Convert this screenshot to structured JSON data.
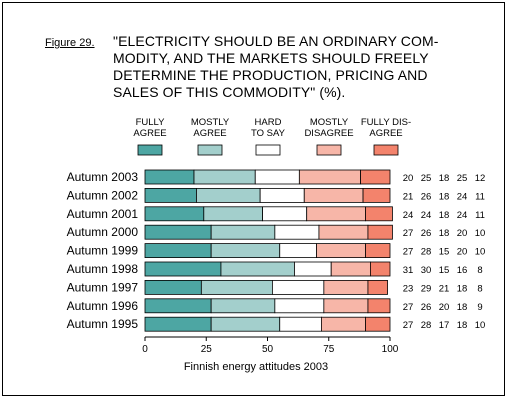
{
  "figure": {
    "label": "Figure 29.",
    "title": "\"ELECTRICITY SHOULD BE AN ORDINARY COM-\nMODITY, AND THE MARKETS SHOULD FREELY\nDETERMINE THE PRODUCTION, PRICING AND\nSALES OF THIS COMMODITY\" (%)."
  },
  "colors": {
    "fully_agree": "#4da6a3",
    "mostly_agree": "#a3cfcc",
    "hard_to_say": "#ffffff",
    "mostly_disagree": "#f7b6a8",
    "fully_disagree": "#f3836c"
  },
  "chart_data": {
    "type": "bar",
    "orientation": "horizontal",
    "stacked": true,
    "title": "\"ELECTRICITY SHOULD BE AN ORDINARY COMMODITY, AND THE MARKETS SHOULD FREELY DETERMINE THE PRODUCTION, PRICING AND SALES OF THIS COMMODITY\" (%).",
    "xlabel": "Finnish energy attitudes 2003",
    "xlim": [
      0,
      100
    ],
    "xticks": [
      "0",
      "25",
      "50",
      "75",
      "100"
    ],
    "legend_position": "top",
    "categories": [
      "Autumn 2003",
      "Autumn 2002",
      "Autumn 2001",
      "Autumn 2000",
      "Autumn 1999",
      "Autumn 1998",
      "Autumn 1997",
      "Autumn 1996",
      "Autumn 1995"
    ],
    "series": [
      {
        "name": "FULLY\nAGREE",
        "key": "fully_agree",
        "values": [
          20,
          21,
          24,
          27,
          27,
          31,
          23,
          27,
          27
        ]
      },
      {
        "name": "MOSTLY\nAGREE",
        "key": "mostly_agree",
        "values": [
          25,
          26,
          24,
          26,
          28,
          30,
          29,
          26,
          28
        ]
      },
      {
        "name": "HARD\nTO SAY",
        "key": "hard_to_say",
        "values": [
          18,
          18,
          18,
          18,
          15,
          15,
          21,
          20,
          17
        ]
      },
      {
        "name": "MOSTLY\nDISAGREE",
        "key": "mostly_disagree",
        "values": [
          25,
          24,
          24,
          20,
          20,
          16,
          18,
          18,
          18
        ]
      },
      {
        "name": "FULLY DIS-\nAGREE",
        "key": "fully_disagree",
        "values": [
          12,
          11,
          11,
          10,
          10,
          8,
          8,
          9,
          10
        ]
      }
    ]
  }
}
